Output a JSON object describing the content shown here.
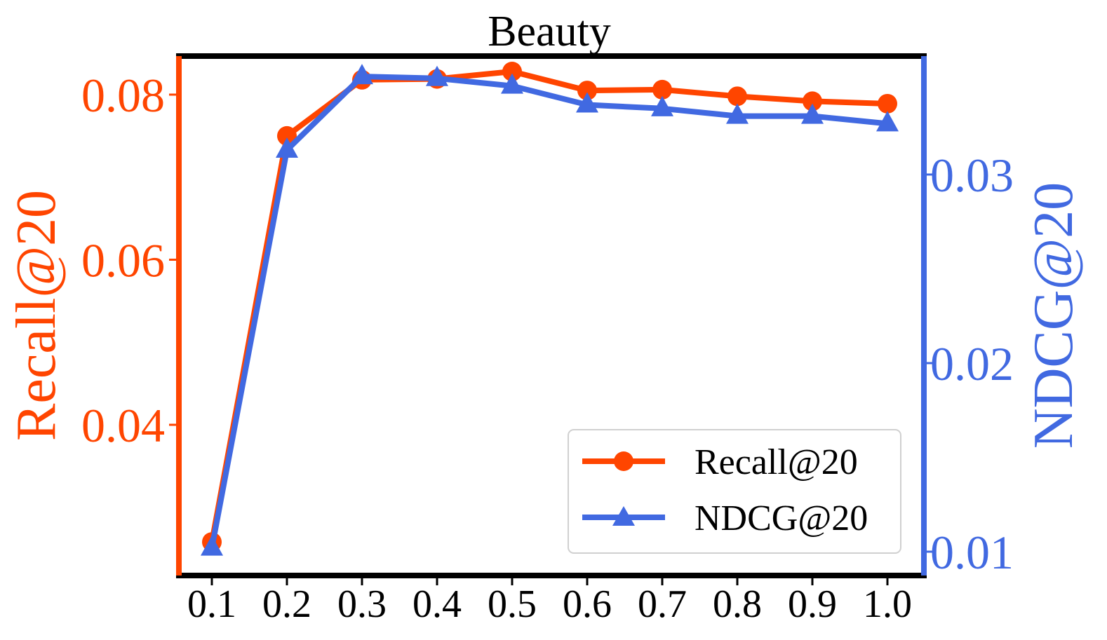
{
  "chart_data": {
    "type": "line",
    "title": "Beauty",
    "xlabel": "",
    "x": [
      0.1,
      0.2,
      0.3,
      0.4,
      0.5,
      0.6,
      0.7,
      0.8,
      0.9,
      1.0
    ],
    "x_tick_labels": [
      "0.1",
      "0.2",
      "0.3",
      "0.4",
      "0.5",
      "0.6",
      "0.7",
      "0.8",
      "0.9",
      "1.0"
    ],
    "y_left": {
      "label": "Recall@20",
      "ticks": [
        0.04,
        0.06,
        0.08
      ],
      "tick_labels": [
        "0.04",
        "0.06",
        "0.08"
      ],
      "color": "#FF4500"
    },
    "y_right": {
      "label": "NDCG@20",
      "ticks": [
        0.01,
        0.02,
        0.03
      ],
      "tick_labels": [
        "0.01",
        "0.02",
        "0.03"
      ],
      "color": "#4169E1"
    },
    "series": [
      {
        "name": "Recall@20",
        "axis": "left",
        "marker": "circle",
        "color": "#FF4500",
        "values": [
          0.0258,
          0.075,
          0.0818,
          0.0819,
          0.0828,
          0.0805,
          0.0806,
          0.0798,
          0.0792,
          0.0789
        ]
      },
      {
        "name": "NDCG@20",
        "axis": "right",
        "marker": "triangle",
        "color": "#4169E1",
        "values": [
          0.0102,
          0.0313,
          0.0352,
          0.0351,
          0.0347,
          0.0337,
          0.0335,
          0.0331,
          0.0331,
          0.0327
        ]
      }
    ],
    "legend": {
      "position": "lower right"
    },
    "grid": false
  }
}
